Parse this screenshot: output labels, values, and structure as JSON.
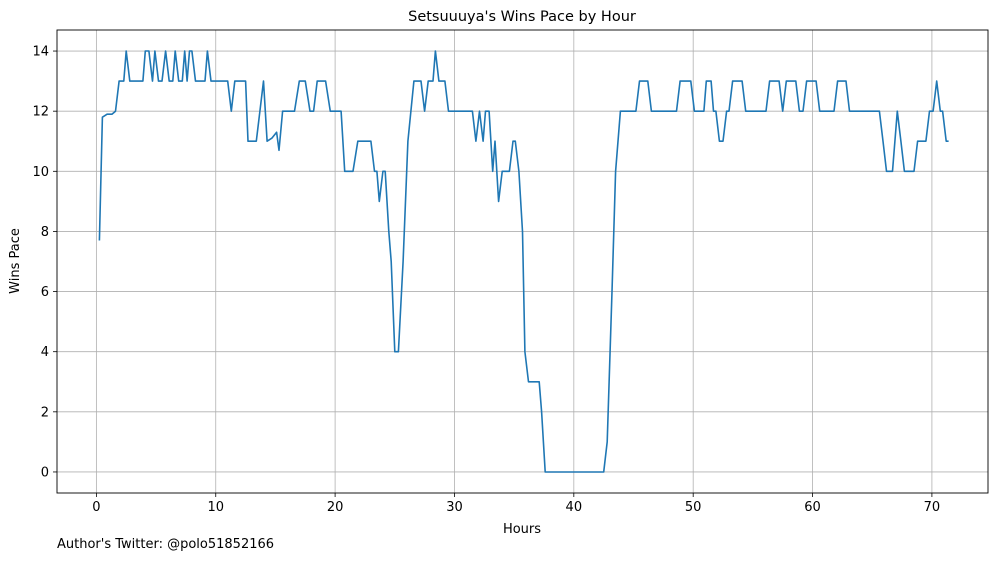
{
  "chart_data": {
    "type": "line",
    "title": "Setsuuuya's Wins Pace by Hour",
    "xlabel": "Hours",
    "ylabel": "Wins Pace",
    "xlim": [
      -3.3,
      74.7
    ],
    "ylim": [
      -0.7,
      14.7
    ],
    "x_ticks": [
      0,
      10,
      20,
      30,
      40,
      50,
      60,
      70
    ],
    "y_ticks": [
      0,
      2,
      4,
      6,
      8,
      10,
      12,
      14
    ],
    "grid": true,
    "legend": "none",
    "series": [
      {
        "color": "#1f77b4",
        "points": [
          [
            0.25,
            7.7
          ],
          [
            0.5,
            11.8
          ],
          [
            0.9,
            11.9
          ],
          [
            1.3,
            11.9
          ],
          [
            1.6,
            12
          ],
          [
            1.9,
            13
          ],
          [
            2.3,
            13
          ],
          [
            2.5,
            14
          ],
          [
            2.8,
            13
          ],
          [
            3.1,
            13
          ],
          [
            3.4,
            13
          ],
          [
            3.7,
            13
          ],
          [
            3.9,
            13
          ],
          [
            4.1,
            14
          ],
          [
            4.4,
            14
          ],
          [
            4.7,
            13
          ],
          [
            4.9,
            14
          ],
          [
            5.2,
            13
          ],
          [
            5.5,
            13
          ],
          [
            5.8,
            14
          ],
          [
            6.1,
            13
          ],
          [
            6.4,
            13
          ],
          [
            6.6,
            14
          ],
          [
            6.9,
            13
          ],
          [
            7.2,
            13
          ],
          [
            7.4,
            14
          ],
          [
            7.6,
            13
          ],
          [
            7.8,
            14
          ],
          [
            8.0,
            14
          ],
          [
            8.3,
            13
          ],
          [
            8.7,
            13
          ],
          [
            9.1,
            13
          ],
          [
            9.3,
            14
          ],
          [
            9.6,
            13
          ],
          [
            10.3,
            13
          ],
          [
            11.0,
            13
          ],
          [
            11.3,
            12
          ],
          [
            11.6,
            13
          ],
          [
            12.0,
            13
          ],
          [
            12.5,
            13
          ],
          [
            12.7,
            11
          ],
          [
            13.4,
            11
          ],
          [
            13.7,
            12
          ],
          [
            14.0,
            13
          ],
          [
            14.3,
            11
          ],
          [
            14.7,
            11.1
          ],
          [
            15.1,
            11.3
          ],
          [
            15.3,
            10.7
          ],
          [
            15.6,
            12
          ],
          [
            16.2,
            12
          ],
          [
            16.6,
            12
          ],
          [
            17.0,
            13
          ],
          [
            17.5,
            13
          ],
          [
            17.9,
            12
          ],
          [
            18.2,
            12
          ],
          [
            18.5,
            13
          ],
          [
            19.2,
            13
          ],
          [
            19.6,
            12
          ],
          [
            20.1,
            12
          ],
          [
            20.5,
            12
          ],
          [
            20.8,
            10
          ],
          [
            21.5,
            10
          ],
          [
            21.9,
            11
          ],
          [
            22.5,
            11
          ],
          [
            23.0,
            11
          ],
          [
            23.3,
            10
          ],
          [
            23.5,
            10
          ],
          [
            23.7,
            9
          ],
          [
            24.0,
            10
          ],
          [
            24.2,
            10
          ],
          [
            24.5,
            8
          ],
          [
            24.7,
            7
          ],
          [
            25.0,
            4
          ],
          [
            25.3,
            4
          ],
          [
            25.7,
            7
          ],
          [
            26.1,
            11
          ],
          [
            26.6,
            13
          ],
          [
            27.2,
            13
          ],
          [
            27.5,
            12
          ],
          [
            27.8,
            13
          ],
          [
            28.2,
            13
          ],
          [
            28.4,
            14
          ],
          [
            28.7,
            13
          ],
          [
            29.2,
            13
          ],
          [
            29.5,
            12
          ],
          [
            31.0,
            12
          ],
          [
            31.5,
            12
          ],
          [
            31.8,
            11
          ],
          [
            32.1,
            12
          ],
          [
            32.4,
            11
          ],
          [
            32.6,
            12
          ],
          [
            32.9,
            12
          ],
          [
            33.2,
            10
          ],
          [
            33.4,
            11
          ],
          [
            33.7,
            9
          ],
          [
            34.0,
            10
          ],
          [
            34.6,
            10
          ],
          [
            34.9,
            11
          ],
          [
            35.1,
            11
          ],
          [
            35.4,
            10
          ],
          [
            35.7,
            8
          ],
          [
            35.9,
            4
          ],
          [
            36.2,
            3
          ],
          [
            37.1,
            3
          ],
          [
            37.3,
            2
          ],
          [
            37.6,
            0
          ],
          [
            42.5,
            0
          ],
          [
            42.8,
            1
          ],
          [
            43.2,
            6
          ],
          [
            43.5,
            10
          ],
          [
            43.9,
            12
          ],
          [
            44.5,
            12
          ],
          [
            45.2,
            12
          ],
          [
            45.5,
            13
          ],
          [
            46.2,
            13
          ],
          [
            46.5,
            12
          ],
          [
            47.3,
            12
          ],
          [
            48.6,
            12
          ],
          [
            48.9,
            13
          ],
          [
            49.8,
            13
          ],
          [
            50.1,
            12
          ],
          [
            50.9,
            12
          ],
          [
            51.1,
            13
          ],
          [
            51.5,
            13
          ],
          [
            51.7,
            12
          ],
          [
            51.9,
            12
          ],
          [
            52.2,
            11
          ],
          [
            52.5,
            11
          ],
          [
            52.8,
            12
          ],
          [
            53.0,
            12
          ],
          [
            53.3,
            13
          ],
          [
            54.1,
            13
          ],
          [
            54.4,
            12
          ],
          [
            56.1,
            12
          ],
          [
            56.4,
            13
          ],
          [
            57.2,
            13
          ],
          [
            57.5,
            12
          ],
          [
            57.8,
            13
          ],
          [
            58.6,
            13
          ],
          [
            58.9,
            12
          ],
          [
            59.2,
            12
          ],
          [
            59.5,
            13
          ],
          [
            60.3,
            13
          ],
          [
            60.6,
            12
          ],
          [
            61.8,
            12
          ],
          [
            62.1,
            13
          ],
          [
            62.8,
            13
          ],
          [
            63.1,
            12
          ],
          [
            65.4,
            12
          ],
          [
            65.6,
            12
          ],
          [
            65.9,
            11
          ],
          [
            66.2,
            10
          ],
          [
            66.7,
            10
          ],
          [
            67.1,
            12
          ],
          [
            67.4,
            11
          ],
          [
            67.7,
            10
          ],
          [
            68.5,
            10
          ],
          [
            68.8,
            11
          ],
          [
            69.5,
            11
          ],
          [
            69.8,
            12
          ],
          [
            70.1,
            12
          ],
          [
            70.4,
            13
          ],
          [
            70.7,
            12
          ],
          [
            70.9,
            12
          ],
          [
            71.2,
            11
          ],
          [
            71.4,
            11
          ]
        ]
      }
    ]
  },
  "footer": "Author's Twitter: @polo51852166"
}
